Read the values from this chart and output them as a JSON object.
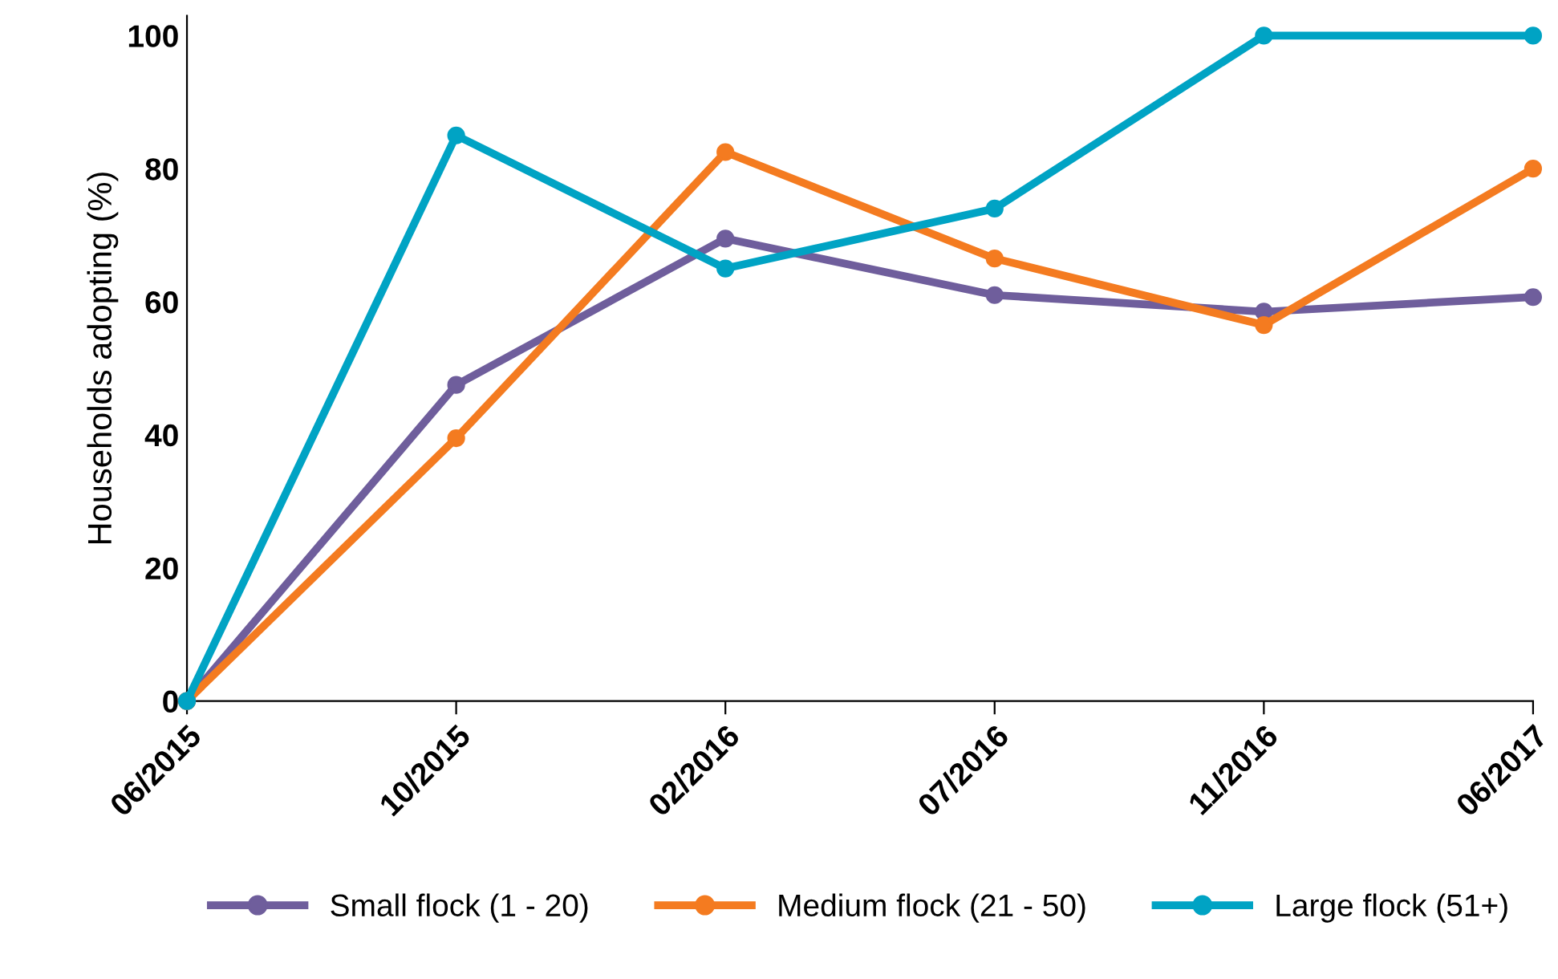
{
  "chart_data": {
    "type": "line",
    "ylabel": "Households adopting (%)",
    "categories": [
      "06/2015",
      "10/2015",
      "02/2016",
      "07/2016",
      "11/2016",
      "06/2017"
    ],
    "series": [
      {
        "name": "Small flock (1 - 20)",
        "color": "#6f5e9c",
        "values": [
          0,
          47.5,
          69.5,
          61,
          58.5,
          60.7
        ]
      },
      {
        "name": "Medium flock (21 - 50)",
        "color": "#f47b20",
        "values": [
          0,
          39.5,
          82.5,
          66.5,
          56.5,
          80
        ]
      },
      {
        "name": "Large flock (51+)",
        "color": "#00a3c4",
        "values": [
          0,
          85,
          65,
          74,
          100,
          100
        ]
      }
    ],
    "ylim": [
      0,
      103
    ],
    "yticks": [
      0,
      20,
      40,
      60,
      80,
      100
    ],
    "grid": false,
    "legend": "bottom",
    "marker": "circle",
    "line_style": "solid"
  }
}
